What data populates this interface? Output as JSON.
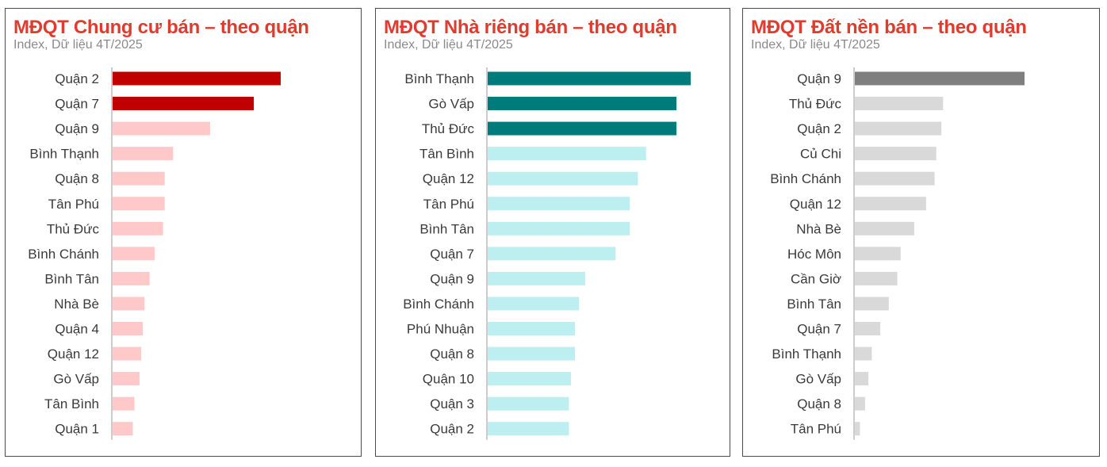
{
  "chart_data": [
    {
      "type": "bar",
      "orientation": "horizontal",
      "title": "MĐQT Chung cư bán – theo quận",
      "subtitle": "Index, Dữ liệu 4T/2025",
      "categories": [
        "Quận 2",
        "Quận 7",
        "Quận 9",
        "Bình Thạnh",
        "Quận 8",
        "Tân Phú",
        "Thủ Đức",
        "Bình Chánh",
        "Bình Tân",
        "Nhà Bè",
        "Quận 4",
        "Quận 12",
        "Gò Vấp",
        "Tân Bình",
        "Quận 1"
      ],
      "values": [
        100,
        84,
        58,
        36,
        31,
        31,
        30,
        25,
        22,
        19,
        18,
        17,
        16,
        13,
        12
      ],
      "highlight_count": 2,
      "colors": {
        "highlight": "#c00000",
        "normal": "#ffc9c9"
      },
      "xlim": [
        0,
        100
      ],
      "xlabel": "",
      "ylabel": "",
      "grid": false,
      "legend": "none"
    },
    {
      "type": "bar",
      "orientation": "horizontal",
      "title": "MĐQT Nhà riêng bán – theo quận",
      "subtitle": "Index, Dữ liệu 4T/2025",
      "categories": [
        "Bình Thạnh",
        "Gò Vấp",
        "Thủ Đức",
        "Tân Bình",
        "Quận 12",
        "Tân Phú",
        "Bình Tân",
        "Quận 7",
        "Quận 9",
        "Bình Chánh",
        "Phú Nhuận",
        "Quận 8",
        "Quận 10",
        "Quận 3",
        "Quận 2"
      ],
      "values": [
        100,
        93,
        93,
        78,
        74,
        70,
        70,
        63,
        48,
        45,
        43,
        43,
        41,
        40,
        40
      ],
      "highlight_count": 3,
      "colors": {
        "highlight": "#007b7b",
        "normal": "#bdeef0"
      },
      "xlim": [
        0,
        100
      ],
      "xlabel": "",
      "ylabel": "",
      "grid": false,
      "legend": "none"
    },
    {
      "type": "bar",
      "orientation": "horizontal",
      "title": "MĐQT Đất nền bán – theo quận",
      "subtitle": "Index, Dữ liệu 4T/2025",
      "categories": [
        "Quận 9",
        "Thủ Đức",
        "Quận 2",
        "Củ Chi",
        "Bình Chánh",
        "Quận 12",
        "Nhà Bè",
        "Hóc Môn",
        "Cần Giờ",
        "Bình Tân",
        "Quận 7",
        "Bình Thạnh",
        "Gò Vấp",
        "Quận 8",
        "Tân Phú"
      ],
      "values": [
        100,
        52,
        51,
        48,
        47,
        42,
        35,
        27,
        25,
        20,
        15,
        10,
        8,
        6,
        3
      ],
      "highlight_count": 1,
      "colors": {
        "highlight": "#7f7f7f",
        "normal": "#d9d9d9"
      },
      "xlim": [
        0,
        100
      ],
      "xlabel": "",
      "ylabel": "",
      "grid": false,
      "legend": "none"
    }
  ],
  "colors": {
    "title": "#e03b2f",
    "subtitle": "#8a8a8a",
    "axis": "#9a9a9a",
    "frame": "#4a4a4a",
    "tick_label": "#3a3a3a"
  }
}
